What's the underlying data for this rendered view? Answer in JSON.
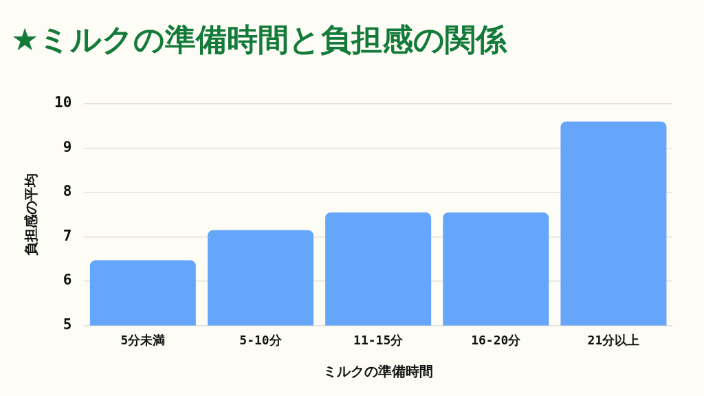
{
  "chart_data": {
    "type": "bar",
    "title": "★ミルクの準備時間と負担感の関係",
    "xlabel": "ミルクの準備時間",
    "ylabel": "負担感の平均",
    "categories": [
      "5分未満",
      "5-10分",
      "11-15分",
      "16-20分",
      "21分以上"
    ],
    "values": [
      6.47,
      7.15,
      7.55,
      7.55,
      9.6
    ],
    "color": "#66a6fa",
    "ylim": [
      5,
      10
    ],
    "yticks": [
      5,
      6,
      7,
      8,
      9,
      10
    ],
    "grid": "y"
  }
}
